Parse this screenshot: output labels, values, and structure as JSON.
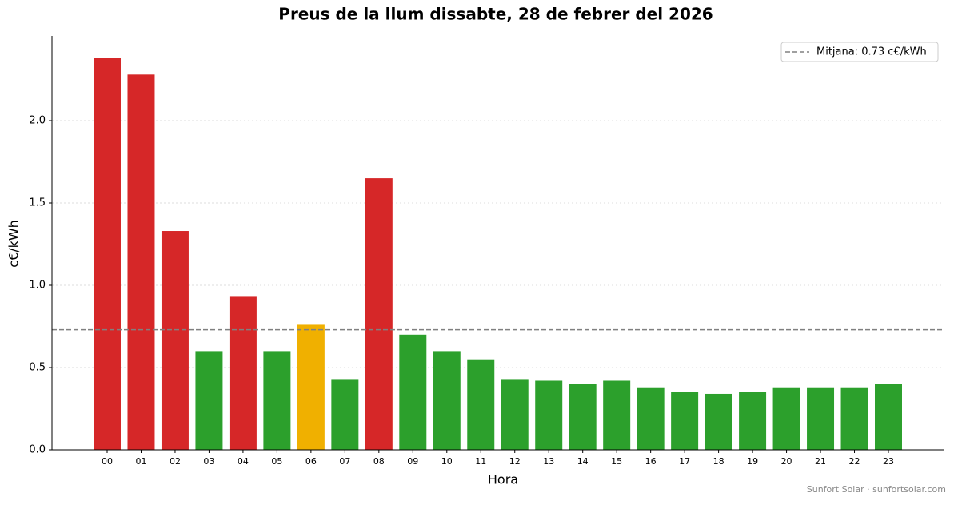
{
  "chart_data": {
    "type": "bar",
    "title": "Preus de la llum dissabte, 28 de febrer del 2026",
    "x_label": "Hora",
    "y_label": "c€/kWh",
    "categories": [
      "00",
      "01",
      "02",
      "03",
      "04",
      "05",
      "06",
      "07",
      "08",
      "09",
      "10",
      "11",
      "12",
      "13",
      "14",
      "15",
      "16",
      "17",
      "18",
      "19",
      "20",
      "21",
      "22",
      "23"
    ],
    "values": [
      2.38,
      2.28,
      1.33,
      0.6,
      0.93,
      0.6,
      0.76,
      0.43,
      1.65,
      0.7,
      0.6,
      0.55,
      0.43,
      0.42,
      0.4,
      0.42,
      0.38,
      0.35,
      0.34,
      0.35,
      0.38,
      0.38,
      0.38,
      0.4
    ],
    "colors": [
      "#d62728",
      "#d62728",
      "#d62728",
      "#2ca02c",
      "#d62728",
      "#2ca02c",
      "#f0b000",
      "#2ca02c",
      "#d62728",
      "#2ca02c",
      "#2ca02c",
      "#2ca02c",
      "#2ca02c",
      "#2ca02c",
      "#2ca02c",
      "#2ca02c",
      "#2ca02c",
      "#2ca02c",
      "#2ca02c",
      "#2ca02c",
      "#2ca02c",
      "#2ca02c",
      "#2ca02c",
      "#2ca02c"
    ],
    "mean": {
      "value": 0.73,
      "label": "Mitjana: 0.73 c€/kWh",
      "color": "#808080"
    },
    "ylim": [
      0,
      2.5
    ],
    "yticks": [
      {
        "value": 0,
        "label": "0.0"
      },
      0.5,
      {
        "value": 1,
        "label": "1.0"
      },
      1.5,
      {
        "value": 2,
        "label": "2.0"
      }
    ],
    "grid": true,
    "legend": "upper right",
    "source": "Sunfort Solar · sunfortsolar.com"
  }
}
